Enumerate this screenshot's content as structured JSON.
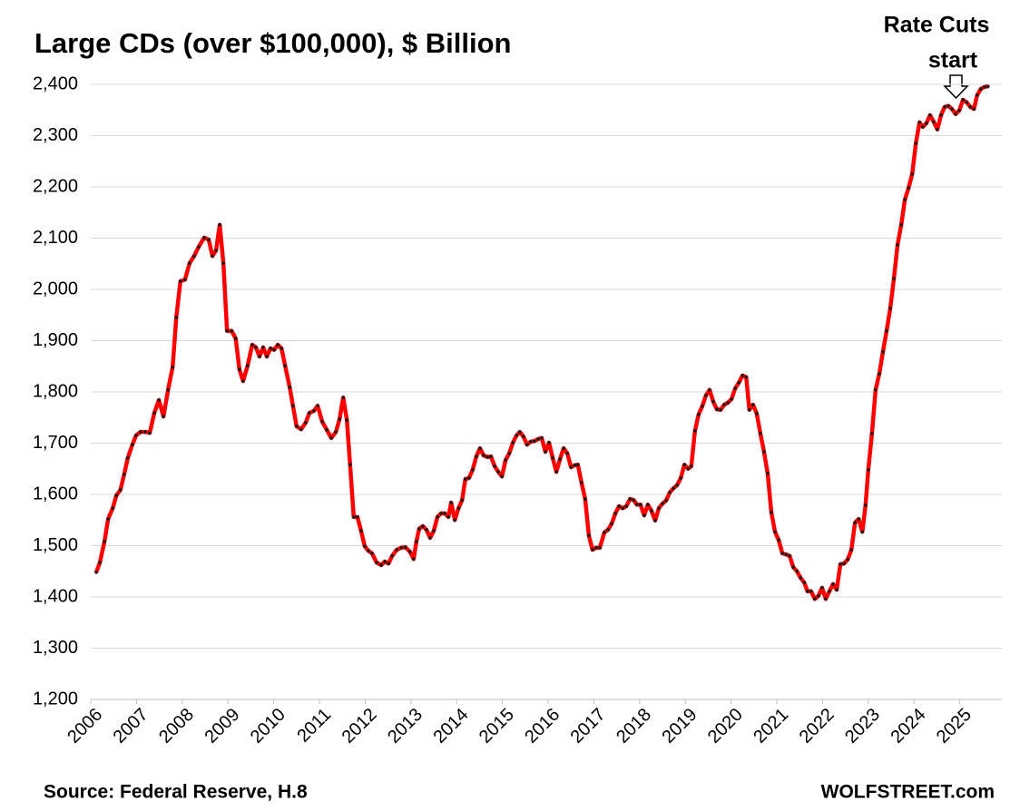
{
  "chart_data": {
    "type": "line",
    "title": "Large CDs (over $100,000), $ Billion",
    "source": "Source: Federal Reserve, H.8",
    "credit": "WOLFSTREET.com",
    "annotation": [
      "Rate Cuts",
      "start"
    ],
    "color": "#ff0000",
    "marker_color": "#1a1a1a",
    "grid": true,
    "xlim": [
      2006,
      2025.92
    ],
    "xticks": [
      2006,
      2007,
      2008,
      2009,
      2010,
      2011,
      2012,
      2013,
      2014,
      2015,
      2016,
      2017,
      2018,
      2019,
      2020,
      2021,
      2022,
      2023,
      2024,
      2025
    ],
    "ylim": [
      1200,
      2400
    ],
    "yticks": [
      {
        "value": 1200,
        "label": "1,200"
      },
      {
        "value": 1300,
        "label": "1,300"
      },
      {
        "value": 1400,
        "label": "1,400"
      },
      {
        "value": 1500,
        "label": "1,500"
      },
      {
        "value": 1600,
        "label": "1,600"
      },
      {
        "value": 1700,
        "label": "1,700"
      },
      {
        "value": 1800,
        "label": "1,800"
      },
      {
        "value": 1900,
        "label": "1,900"
      },
      {
        "value": 2000,
        "label": "2,000"
      },
      {
        "value": 2100,
        "label": "2,100"
      },
      {
        "value": 2200,
        "label": "2,200"
      },
      {
        "value": 2300,
        "label": "2,300"
      },
      {
        "value": 2400,
        "label": "2,400"
      }
    ],
    "x": [
      2006.12,
      2006.2,
      2006.3,
      2006.38,
      2006.48,
      2006.56,
      2006.65,
      2006.73,
      2006.81,
      2006.91,
      2006.99,
      2007.09,
      2007.19,
      2007.29,
      2007.39,
      2007.49,
      2007.59,
      2007.69,
      2007.79,
      2007.87,
      2007.96,
      2008.06,
      2008.16,
      2008.26,
      2008.36,
      2008.48,
      2008.58,
      2008.66,
      2008.74,
      2008.82,
      2008.9,
      2008.98,
      2009.08,
      2009.17,
      2009.25,
      2009.33,
      2009.43,
      2009.53,
      2009.61,
      2009.69,
      2009.77,
      2009.85,
      2009.93,
      2010.01,
      2010.09,
      2010.17,
      2010.25,
      2010.35,
      2010.42,
      2010.5,
      2010.6,
      2010.7,
      2010.78,
      2010.88,
      2010.96,
      2011.06,
      2011.16,
      2011.26,
      2011.36,
      2011.44,
      2011.52,
      2011.6,
      2011.67,
      2011.75,
      2011.83,
      2011.91,
      2011.99,
      2012.07,
      2012.15,
      2012.25,
      2012.35,
      2012.43,
      2012.51,
      2012.59,
      2012.69,
      2012.79,
      2012.88,
      2012.98,
      2013.06,
      2013.12,
      2013.18,
      2013.26,
      2013.34,
      2013.42,
      2013.5,
      2013.58,
      2013.66,
      2013.74,
      2013.82,
      2013.88,
      2013.96,
      2014.04,
      2014.12,
      2014.19,
      2014.27,
      2014.35,
      2014.43,
      2014.51,
      2014.59,
      2014.67,
      2014.75,
      2014.83,
      2014.91,
      2014.99,
      2015.07,
      2015.15,
      2015.23,
      2015.31,
      2015.38,
      2015.46,
      2015.54,
      2015.62,
      2015.7,
      2015.78,
      2015.86,
      2015.94,
      2016.02,
      2016.1,
      2016.18,
      2016.26,
      2016.34,
      2016.42,
      2016.5,
      2016.58,
      2016.65,
      2016.73,
      2016.81,
      2016.89,
      2016.97,
      2017.05,
      2017.13,
      2017.23,
      2017.31,
      2017.39,
      2017.47,
      2017.55,
      2017.63,
      2017.71,
      2017.79,
      2017.87,
      2017.94,
      2018.02,
      2018.1,
      2018.18,
      2018.26,
      2018.34,
      2018.42,
      2018.5,
      2018.58,
      2018.66,
      2018.74,
      2018.82,
      2018.9,
      2018.98,
      2019.06,
      2019.13,
      2019.21,
      2019.29,
      2019.37,
      2019.45,
      2019.53,
      2019.61,
      2019.69,
      2019.77,
      2019.85,
      2019.93,
      2020.01,
      2020.09,
      2020.17,
      2020.25,
      2020.33,
      2020.4,
      2020.48,
      2020.56,
      2020.64,
      2020.72,
      2020.8,
      2020.88,
      2020.96,
      2021.04,
      2021.12,
      2021.2,
      2021.28,
      2021.36,
      2021.44,
      2021.52,
      2021.6,
      2021.67,
      2021.75,
      2021.83,
      2021.91,
      2021.99,
      2022.07,
      2022.15,
      2022.23,
      2022.31,
      2022.39,
      2022.47,
      2022.55,
      2022.63,
      2022.71,
      2022.79,
      2022.87,
      2022.94,
      2023.0,
      2023.08,
      2023.16,
      2023.24,
      2023.32,
      2023.4,
      2023.48,
      2023.56,
      2023.64,
      2023.72,
      2023.8,
      2023.88,
      2023.96,
      2024.04,
      2024.12,
      2024.19,
      2024.27,
      2024.35,
      2024.43,
      2024.51,
      2024.59,
      2024.67,
      2024.75,
      2024.83,
      2024.91,
      2024.99,
      2025.07,
      2025.15,
      2025.23,
      2025.31,
      2025.38,
      2025.46,
      2025.54,
      2025.62
    ],
    "values": [
      1448,
      1467,
      1508,
      1552,
      1573,
      1598,
      1609,
      1639,
      1671,
      1697,
      1715,
      1722,
      1722,
      1720,
      1759,
      1784,
      1752,
      1804,
      1848,
      1945,
      2016,
      2019,
      2051,
      2065,
      2083,
      2101,
      2097,
      2065,
      2076,
      2126,
      2051,
      1919,
      1919,
      1904,
      1844,
      1821,
      1851,
      1892,
      1887,
      1869,
      1887,
      1869,
      1885,
      1882,
      1892,
      1885,
      1851,
      1809,
      1773,
      1733,
      1727,
      1740,
      1759,
      1763,
      1773,
      1742,
      1726,
      1710,
      1722,
      1747,
      1789,
      1745,
      1658,
      1556,
      1556,
      1529,
      1499,
      1490,
      1485,
      1467,
      1462,
      1469,
      1465,
      1480,
      1492,
      1496,
      1497,
      1488,
      1474,
      1508,
      1533,
      1538,
      1531,
      1515,
      1529,
      1556,
      1563,
      1563,
      1556,
      1584,
      1550,
      1573,
      1589,
      1630,
      1632,
      1648,
      1674,
      1690,
      1676,
      1673,
      1674,
      1655,
      1644,
      1635,
      1667,
      1680,
      1701,
      1715,
      1722,
      1713,
      1697,
      1703,
      1704,
      1708,
      1710,
      1683,
      1701,
      1671,
      1644,
      1669,
      1690,
      1680,
      1653,
      1657,
      1658,
      1623,
      1591,
      1520,
      1492,
      1496,
      1496,
      1526,
      1531,
      1543,
      1563,
      1577,
      1573,
      1577,
      1591,
      1589,
      1580,
      1580,
      1559,
      1580,
      1568,
      1549,
      1573,
      1582,
      1588,
      1604,
      1612,
      1618,
      1632,
      1658,
      1650,
      1655,
      1724,
      1756,
      1772,
      1793,
      1804,
      1781,
      1766,
      1765,
      1775,
      1779,
      1786,
      1807,
      1818,
      1832,
      1829,
      1765,
      1775,
      1758,
      1719,
      1683,
      1641,
      1565,
      1527,
      1511,
      1485,
      1483,
      1480,
      1458,
      1450,
      1437,
      1428,
      1411,
      1411,
      1396,
      1402,
      1418,
      1396,
      1411,
      1425,
      1414,
      1464,
      1465,
      1473,
      1492,
      1545,
      1552,
      1527,
      1579,
      1648,
      1719,
      1804,
      1835,
      1878,
      1919,
      1963,
      2021,
      2087,
      2126,
      2175,
      2198,
      2225,
      2285,
      2326,
      2317,
      2324,
      2340,
      2327,
      2312,
      2340,
      2356,
      2358,
      2352,
      2342,
      2349,
      2370,
      2365,
      2356,
      2352,
      2379,
      2391,
      2395,
      2396
    ]
  }
}
